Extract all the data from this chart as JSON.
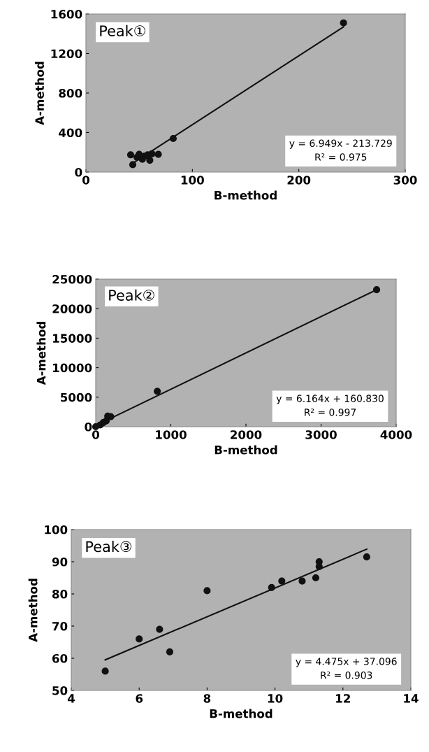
{
  "chart_data": [
    {
      "type": "scatter",
      "title": "Peak①",
      "xlabel": "B-method",
      "ylabel": "A-method",
      "xlim": [
        0,
        300
      ],
      "xticks": [
        0,
        100,
        200,
        300
      ],
      "ylim": [
        0,
        1600
      ],
      "yticks": [
        0,
        400,
        800,
        1200,
        1600
      ],
      "grid": false,
      "legend": false,
      "annotations": [
        "y = 6.949x - 213.729",
        "R² = 0.975"
      ],
      "series": [
        {
          "marker": "circle",
          "color": "#111111",
          "x": [
            42,
            44,
            48,
            50,
            53,
            55,
            58,
            60,
            62,
            68,
            82,
            242
          ],
          "values": [
            175,
            75,
            150,
            180,
            130,
            160,
            175,
            120,
            185,
            180,
            340,
            1510
          ]
        },
        {
          "type": "line",
          "color": "#111111",
          "x": [
            44,
            242
          ],
          "values": [
            90,
            1470
          ]
        }
      ]
    },
    {
      "type": "scatter",
      "xlabel": "B-method",
      "ylabel": "A-method",
      "title": "Peak②",
      "xlim": [
        0,
        4000
      ],
      "xticks": [
        0,
        1000,
        2000,
        3000,
        4000
      ],
      "ylim": [
        0,
        25000
      ],
      "yticks": [
        0,
        5000,
        10000,
        15000,
        20000,
        25000
      ],
      "grid": false,
      "legend": false,
      "annotations": [
        "y = 6.164x + 160.830",
        "R² = 0.997"
      ],
      "series": [
        {
          "marker": "circle",
          "color": "#111111",
          "x": [
            0,
            60,
            100,
            140,
            160,
            200,
            820,
            3740
          ],
          "values": [
            0,
            300,
            700,
            1000,
            1800,
            1700,
            6000,
            23200
          ]
        },
        {
          "type": "line",
          "color": "#111111",
          "x": [
            0,
            3740
          ],
          "values": [
            200,
            23200
          ]
        }
      ]
    },
    {
      "type": "scatter",
      "xlabel": "B-method",
      "ylabel": "A-method",
      "title": "Peak③",
      "xlim": [
        4,
        14
      ],
      "xticks": [
        4,
        6,
        8,
        10,
        12,
        14
      ],
      "ylim": [
        50,
        100
      ],
      "yticks": [
        50,
        60,
        70,
        80,
        90,
        100
      ],
      "grid": false,
      "legend": false,
      "annotations": [
        "y = 4.475x + 37.096",
        "R² = 0.903"
      ],
      "series": [
        {
          "marker": "circle",
          "color": "#111111",
          "x": [
            5,
            6,
            6.6,
            6.9,
            8,
            9.9,
            10.2,
            10.8,
            11.2,
            11.3,
            11.3,
            12.7
          ],
          "values": [
            56,
            66,
            69,
            62,
            81,
            82,
            84,
            84,
            85,
            88.5,
            90,
            91.5
          ]
        },
        {
          "type": "line",
          "color": "#111111",
          "x": [
            5,
            12.7
          ],
          "values": [
            59.5,
            93.9
          ]
        }
      ]
    }
  ]
}
